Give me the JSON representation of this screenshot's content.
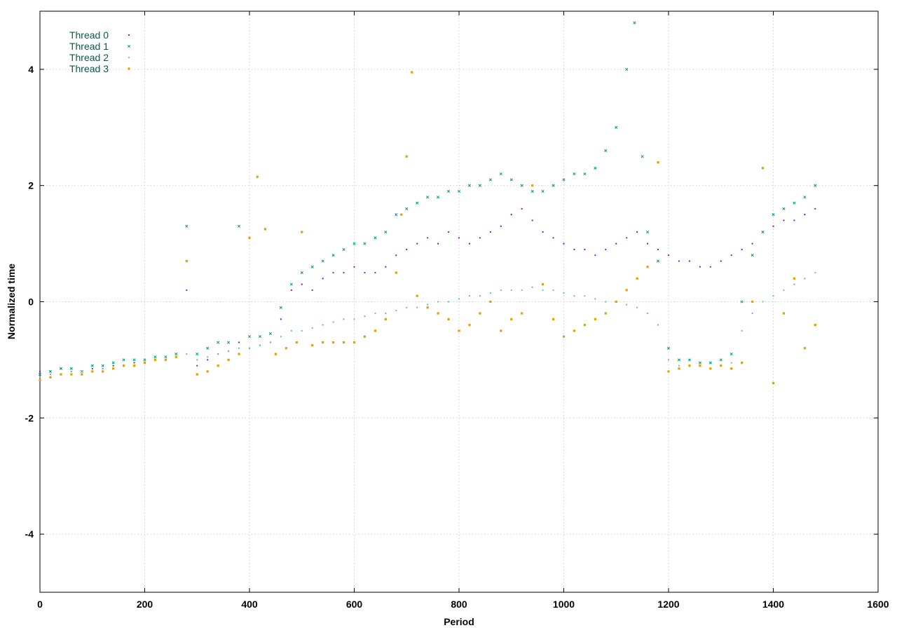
{
  "chart_data": {
    "type": "scatter",
    "title": "",
    "xlabel": "Period",
    "ylabel": "Normalized time",
    "xlim": [
      0,
      1600
    ],
    "ylim": [
      -5,
      5
    ],
    "x_ticks": [
      0,
      200,
      400,
      600,
      800,
      1000,
      1200,
      1400,
      1600
    ],
    "x_tick_labels": [
      "0",
      "200",
      "400",
      "600",
      "800",
      "1000",
      "1200",
      "1400",
      "1600"
    ],
    "y_ticks": [
      -4,
      -2,
      0,
      2,
      4
    ],
    "y_tick_labels": [
      "-4",
      "-2",
      "0",
      "2",
      "4"
    ],
    "grid": true,
    "legend_position": "top-left",
    "series": [
      {
        "name": "Thread 0",
        "color": "#9400d3",
        "marker": "dot",
        "points": [
          [
            0,
            -1.2
          ],
          [
            20,
            -1.2
          ],
          [
            40,
            -1.15
          ],
          [
            60,
            -1.2
          ],
          [
            80,
            -1.25
          ],
          [
            100,
            -1.15
          ],
          [
            120,
            -1.15
          ],
          [
            140,
            -1.1
          ],
          [
            160,
            -1.1
          ],
          [
            180,
            -1.05
          ],
          [
            200,
            -1.05
          ],
          [
            220,
            -1.0
          ],
          [
            240,
            -1.0
          ],
          [
            260,
            -0.95
          ],
          [
            280,
            0.2
          ],
          [
            300,
            -1.1
          ],
          [
            320,
            -1.0
          ],
          [
            340,
            -0.9
          ],
          [
            360,
            -0.85
          ],
          [
            380,
            -0.7
          ],
          [
            400,
            -0.8
          ],
          [
            420,
            -0.75
          ],
          [
            440,
            -0.7
          ],
          [
            460,
            -0.3
          ],
          [
            480,
            0.2
          ],
          [
            500,
            0.3
          ],
          [
            520,
            0.2
          ],
          [
            540,
            0.4
          ],
          [
            560,
            0.5
          ],
          [
            580,
            0.5
          ],
          [
            600,
            0.6
          ],
          [
            620,
            0.5
          ],
          [
            640,
            0.5
          ],
          [
            660,
            0.6
          ],
          [
            680,
            0.8
          ],
          [
            700,
            0.9
          ],
          [
            720,
            1.0
          ],
          [
            740,
            1.1
          ],
          [
            760,
            1.0
          ],
          [
            780,
            1.2
          ],
          [
            800,
            1.1
          ],
          [
            820,
            1.0
          ],
          [
            840,
            1.1
          ],
          [
            860,
            1.2
          ],
          [
            880,
            1.3
          ],
          [
            900,
            1.5
          ],
          [
            920,
            1.6
          ],
          [
            940,
            1.4
          ],
          [
            960,
            1.2
          ],
          [
            980,
            1.1
          ],
          [
            1000,
            1.0
          ],
          [
            1020,
            0.9
          ],
          [
            1040,
            0.9
          ],
          [
            1060,
            0.8
          ],
          [
            1080,
            0.9
          ],
          [
            1100,
            1.0
          ],
          [
            1120,
            1.1
          ],
          [
            1140,
            1.2
          ],
          [
            1160,
            1.0
          ],
          [
            1180,
            0.9
          ],
          [
            1200,
            0.8
          ],
          [
            1220,
            0.7
          ],
          [
            1240,
            0.7
          ],
          [
            1260,
            0.6
          ],
          [
            1280,
            0.6
          ],
          [
            1300,
            0.7
          ],
          [
            1320,
            0.8
          ],
          [
            1340,
            0.9
          ],
          [
            1360,
            1.0
          ],
          [
            1380,
            1.2
          ],
          [
            1400,
            1.3
          ],
          [
            1420,
            1.4
          ],
          [
            1440,
            1.4
          ],
          [
            1460,
            1.5
          ],
          [
            1480,
            1.6
          ]
        ]
      },
      {
        "name": "Thread 1",
        "color": "#009e73",
        "marker": "x",
        "points": [
          [
            0,
            -1.25
          ],
          [
            20,
            -1.2
          ],
          [
            40,
            -1.15
          ],
          [
            60,
            -1.15
          ],
          [
            80,
            -1.2
          ],
          [
            100,
            -1.1
          ],
          [
            120,
            -1.1
          ],
          [
            140,
            -1.05
          ],
          [
            160,
            -1.0
          ],
          [
            180,
            -1.0
          ],
          [
            200,
            -1.0
          ],
          [
            220,
            -0.95
          ],
          [
            240,
            -0.95
          ],
          [
            260,
            -0.9
          ],
          [
            280,
            1.3
          ],
          [
            300,
            -0.9
          ],
          [
            320,
            -0.8
          ],
          [
            340,
            -0.7
          ],
          [
            360,
            -0.7
          ],
          [
            380,
            1.3
          ],
          [
            400,
            -0.6
          ],
          [
            420,
            -0.6
          ],
          [
            440,
            -0.55
          ],
          [
            460,
            -0.1
          ],
          [
            480,
            0.3
          ],
          [
            500,
            0.5
          ],
          [
            520,
            0.6
          ],
          [
            540,
            0.7
          ],
          [
            560,
            0.8
          ],
          [
            580,
            0.9
          ],
          [
            600,
            1.0
          ],
          [
            620,
            1.0
          ],
          [
            640,
            1.1
          ],
          [
            660,
            1.2
          ],
          [
            680,
            1.5
          ],
          [
            700,
            1.6
          ],
          [
            720,
            1.7
          ],
          [
            740,
            1.8
          ],
          [
            760,
            1.8
          ],
          [
            780,
            1.9
          ],
          [
            800,
            1.9
          ],
          [
            820,
            2.0
          ],
          [
            840,
            2.0
          ],
          [
            860,
            2.1
          ],
          [
            880,
            2.2
          ],
          [
            900,
            2.1
          ],
          [
            920,
            2.0
          ],
          [
            940,
            1.9
          ],
          [
            960,
            1.9
          ],
          [
            980,
            2.0
          ],
          [
            1000,
            2.1
          ],
          [
            1020,
            2.2
          ],
          [
            1040,
            2.2
          ],
          [
            1060,
            2.3
          ],
          [
            1080,
            2.6
          ],
          [
            1100,
            3.0
          ],
          [
            1120,
            4.0
          ],
          [
            1135,
            4.8
          ],
          [
            1150,
            2.5
          ],
          [
            1160,
            1.2
          ],
          [
            1180,
            0.7
          ],
          [
            1200,
            -0.8
          ],
          [
            1220,
            -1.0
          ],
          [
            1240,
            -1.0
          ],
          [
            1260,
            -1.05
          ],
          [
            1280,
            -1.05
          ],
          [
            1300,
            -1.0
          ],
          [
            1320,
            -0.9
          ],
          [
            1340,
            0.0
          ],
          [
            1360,
            0.8
          ],
          [
            1380,
            1.2
          ],
          [
            1400,
            1.5
          ],
          [
            1420,
            1.6
          ],
          [
            1440,
            1.7
          ],
          [
            1460,
            1.8
          ],
          [
            1480,
            2.0
          ]
        ]
      },
      {
        "name": "Thread 2",
        "color": "#56b4e9",
        "marker": "dot",
        "points": [
          [
            0,
            -1.3
          ],
          [
            20,
            -1.25
          ],
          [
            40,
            -1.25
          ],
          [
            60,
            -1.2
          ],
          [
            80,
            -1.2
          ],
          [
            100,
            -1.2
          ],
          [
            120,
            -1.15
          ],
          [
            140,
            -1.15
          ],
          [
            160,
            -1.1
          ],
          [
            180,
            -1.1
          ],
          [
            200,
            -1.05
          ],
          [
            220,
            -1.0
          ],
          [
            240,
            -1.0
          ],
          [
            260,
            -0.95
          ],
          [
            280,
            -0.9
          ],
          [
            300,
            -1.0
          ],
          [
            320,
            -0.95
          ],
          [
            340,
            -0.9
          ],
          [
            360,
            -0.85
          ],
          [
            380,
            -0.8
          ],
          [
            400,
            -0.8
          ],
          [
            420,
            -0.75
          ],
          [
            440,
            -0.7
          ],
          [
            460,
            -0.6
          ],
          [
            480,
            -0.5
          ],
          [
            500,
            -0.5
          ],
          [
            520,
            -0.45
          ],
          [
            540,
            -0.4
          ],
          [
            560,
            -0.35
          ],
          [
            580,
            -0.3
          ],
          [
            600,
            -0.3
          ],
          [
            620,
            -0.25
          ],
          [
            640,
            -0.2
          ],
          [
            660,
            -0.2
          ],
          [
            680,
            -0.15
          ],
          [
            700,
            -0.1
          ],
          [
            720,
            -0.1
          ],
          [
            740,
            -0.05
          ],
          [
            760,
            0.0
          ],
          [
            780,
            0.0
          ],
          [
            800,
            0.05
          ],
          [
            820,
            0.1
          ],
          [
            840,
            0.1
          ],
          [
            860,
            0.15
          ],
          [
            880,
            0.2
          ],
          [
            900,
            0.2
          ],
          [
            920,
            0.2
          ],
          [
            940,
            0.25
          ],
          [
            960,
            0.2
          ],
          [
            980,
            0.2
          ],
          [
            1000,
            0.15
          ],
          [
            1020,
            0.1
          ],
          [
            1040,
            0.1
          ],
          [
            1060,
            0.05
          ],
          [
            1080,
            0.0
          ],
          [
            1100,
            0.0
          ],
          [
            1120,
            -0.05
          ],
          [
            1140,
            -0.1
          ],
          [
            1160,
            -0.2
          ],
          [
            1180,
            -0.4
          ],
          [
            1200,
            -1.0
          ],
          [
            1220,
            -1.1
          ],
          [
            1240,
            -1.1
          ],
          [
            1260,
            -1.1
          ],
          [
            1280,
            -1.15
          ],
          [
            1300,
            -1.1
          ],
          [
            1320,
            -1.05
          ],
          [
            1340,
            -0.5
          ],
          [
            1360,
            -0.2
          ],
          [
            1380,
            0.0
          ],
          [
            1400,
            0.1
          ],
          [
            1420,
            0.2
          ],
          [
            1440,
            0.3
          ],
          [
            1460,
            0.4
          ],
          [
            1480,
            0.5
          ]
        ]
      },
      {
        "name": "Thread 3",
        "color": "#e69f00",
        "marker": "square",
        "points": [
          [
            0,
            -1.35
          ],
          [
            20,
            -1.3
          ],
          [
            40,
            -1.25
          ],
          [
            60,
            -1.25
          ],
          [
            80,
            -1.25
          ],
          [
            100,
            -1.2
          ],
          [
            120,
            -1.2
          ],
          [
            140,
            -1.15
          ],
          [
            160,
            -1.1
          ],
          [
            180,
            -1.1
          ],
          [
            200,
            -1.05
          ],
          [
            220,
            -1.0
          ],
          [
            240,
            -1.0
          ],
          [
            260,
            -0.95
          ],
          [
            280,
            0.7
          ],
          [
            300,
            -1.25
          ],
          [
            320,
            -1.2
          ],
          [
            340,
            -1.1
          ],
          [
            360,
            -1.0
          ],
          [
            380,
            -0.9
          ],
          [
            400,
            1.1
          ],
          [
            415,
            2.15
          ],
          [
            430,
            1.25
          ],
          [
            450,
            -0.9
          ],
          [
            470,
            -0.8
          ],
          [
            490,
            -0.7
          ],
          [
            500,
            1.2
          ],
          [
            520,
            -0.75
          ],
          [
            540,
            -0.7
          ],
          [
            560,
            -0.7
          ],
          [
            580,
            -0.7
          ],
          [
            600,
            -0.7
          ],
          [
            620,
            -0.6
          ],
          [
            640,
            -0.5
          ],
          [
            660,
            -0.3
          ],
          [
            680,
            0.5
          ],
          [
            690,
            1.5
          ],
          [
            700,
            2.5
          ],
          [
            710,
            3.95
          ],
          [
            720,
            0.1
          ],
          [
            740,
            -0.1
          ],
          [
            760,
            -0.2
          ],
          [
            780,
            -0.3
          ],
          [
            800,
            -0.5
          ],
          [
            820,
            -0.4
          ],
          [
            840,
            -0.2
          ],
          [
            860,
            0.0
          ],
          [
            880,
            -0.5
          ],
          [
            900,
            -0.3
          ],
          [
            920,
            -0.2
          ],
          [
            940,
            2.0
          ],
          [
            960,
            0.3
          ],
          [
            980,
            -0.3
          ],
          [
            1000,
            -0.6
          ],
          [
            1020,
            -0.5
          ],
          [
            1040,
            -0.4
          ],
          [
            1060,
            -0.3
          ],
          [
            1080,
            -0.2
          ],
          [
            1100,
            0.0
          ],
          [
            1120,
            0.2
          ],
          [
            1140,
            0.4
          ],
          [
            1160,
            0.6
          ],
          [
            1180,
            2.4
          ],
          [
            1200,
            -1.2
          ],
          [
            1220,
            -1.15
          ],
          [
            1240,
            -1.1
          ],
          [
            1260,
            -1.1
          ],
          [
            1280,
            -1.15
          ],
          [
            1300,
            -1.1
          ],
          [
            1320,
            -1.15
          ],
          [
            1340,
            -1.05
          ],
          [
            1360,
            0.0
          ],
          [
            1380,
            2.3
          ],
          [
            1400,
            -1.4
          ],
          [
            1420,
            -0.2
          ],
          [
            1440,
            0.4
          ],
          [
            1460,
            -0.8
          ],
          [
            1480,
            -0.4
          ]
        ]
      }
    ]
  }
}
